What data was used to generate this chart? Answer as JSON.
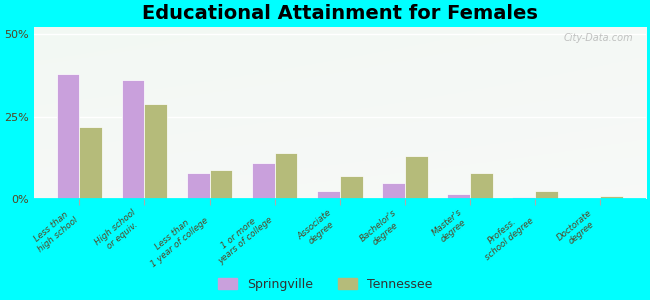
{
  "title": "Educational Attainment for Females",
  "categories": [
    "Less than\nhigh school",
    "High school\nor equiv.",
    "Less than\n1 year of college",
    "1 or more\nyears of college",
    "Associate\ndegree",
    "Bachelor's\ndegree",
    "Master's\ndegree",
    "Profess.\nschool degree",
    "Doctorate\ndegree"
  ],
  "springville": [
    38,
    36,
    8,
    11,
    2.5,
    5,
    1.5,
    0.8,
    0.3
  ],
  "tennessee": [
    22,
    29,
    9,
    14,
    7,
    13,
    8,
    2.5,
    1
  ],
  "springville_color": "#c9a0dc",
  "tennessee_color": "#b5bb7a",
  "background_color": "#00ffff",
  "ylim": [
    0,
    52
  ],
  "yticks": [
    0,
    25,
    50
  ],
  "ytick_labels": [
    "0%",
    "25%",
    "50%"
  ],
  "bar_width": 0.35,
  "legend_labels": [
    "Springville",
    "Tennessee"
  ],
  "title_fontsize": 14,
  "watermark": "City-Data.com"
}
